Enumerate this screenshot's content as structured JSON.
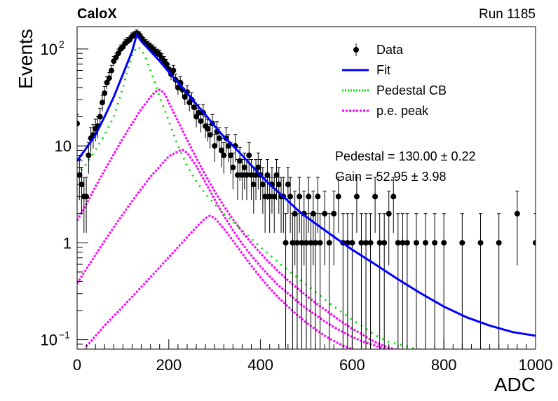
{
  "header": {
    "experiment": "CaloX",
    "run": "Run 1185"
  },
  "chart_data": {
    "type": "scatter",
    "title": "",
    "xlabel": "ADC",
    "ylabel": "Events",
    "xlim": [
      0,
      1000
    ],
    "ylim": [
      0.08,
      170
    ],
    "yscale": "log",
    "x_ticks": [
      0,
      200,
      400,
      600,
      800,
      1000
    ],
    "y_ticks": [
      {
        "value": 0.1,
        "label": "10",
        "exp": "−1"
      },
      {
        "value": 1,
        "label": "1",
        "exp": ""
      },
      {
        "value": 10,
        "label": "10",
        "exp": ""
      },
      {
        "value": 100,
        "label": "10",
        "exp": "2"
      }
    ],
    "grid": false,
    "legend_position": "top-right",
    "legend": [
      {
        "label": "Data",
        "style": "marker",
        "color": "#000000"
      },
      {
        "label": "Fit",
        "style": "solid",
        "color": "#0000ff"
      },
      {
        "label": "Pedestal CB",
        "style": "dotted",
        "color": "#00dd00"
      },
      {
        "label": "p.e. peak",
        "style": "dashed",
        "color": "#ff00ff"
      }
    ],
    "fit_results": {
      "pedestal": "Pedestal = 130.00 ± 0.22",
      "gain": "Gain = 52.95 ± 3.98"
    },
    "data": {
      "x": [
        0,
        5,
        10,
        15,
        20,
        25,
        30,
        35,
        40,
        45,
        50,
        55,
        60,
        65,
        70,
        75,
        80,
        85,
        90,
        95,
        100,
        105,
        110,
        115,
        120,
        125,
        130,
        135,
        140,
        145,
        150,
        155,
        160,
        165,
        170,
        175,
        180,
        185,
        190,
        195,
        200,
        205,
        210,
        215,
        220,
        225,
        230,
        235,
        240,
        245,
        250,
        255,
        260,
        265,
        270,
        275,
        280,
        285,
        290,
        295,
        300,
        305,
        310,
        315,
        320,
        325,
        330,
        335,
        340,
        345,
        350,
        355,
        360,
        365,
        370,
        375,
        380,
        385,
        390,
        395,
        400,
        405,
        410,
        415,
        420,
        425,
        430,
        435,
        440,
        445,
        450,
        455,
        460,
        465,
        470,
        475,
        480,
        485,
        490,
        495,
        500,
        505,
        510,
        515,
        520,
        525,
        530,
        540,
        550,
        560,
        570,
        580,
        590,
        600,
        610,
        620,
        630,
        640,
        650,
        660,
        670,
        680,
        690,
        700,
        710,
        720,
        740,
        760,
        780,
        800,
        840,
        880,
        920,
        960,
        1000
      ],
      "y": [
        17,
        5,
        4,
        3,
        3,
        8,
        12,
        13,
        15,
        16,
        20,
        28,
        35,
        45,
        50,
        60,
        75,
        82,
        90,
        100,
        105,
        115,
        120,
        125,
        135,
        140,
        145,
        140,
        130,
        120,
        115,
        110,
        105,
        100,
        95,
        90,
        88,
        80,
        75,
        70,
        62,
        55,
        60,
        48,
        40,
        45,
        38,
        32,
        36,
        28,
        30,
        25,
        20,
        22,
        18,
        22,
        16,
        15,
        13,
        17,
        10,
        14,
        12,
        9,
        8,
        12,
        10,
        8,
        6,
        10,
        5,
        7,
        5,
        6,
        5,
        8,
        5,
        4,
        5,
        6,
        5,
        4,
        3,
        5,
        3,
        4,
        3,
        5,
        4,
        3,
        3,
        1,
        4,
        3,
        1,
        2,
        1,
        3,
        1,
        2,
        1,
        3,
        1,
        2,
        1,
        3,
        1,
        2,
        1,
        2,
        3,
        1,
        1,
        1,
        3,
        1,
        1,
        1,
        3,
        1,
        1,
        2,
        3,
        1,
        1,
        1,
        1,
        1,
        1,
        1,
        1,
        1,
        1,
        2,
        1
      ]
    },
    "fit": {
      "x": [
        0,
        20,
        40,
        60,
        80,
        100,
        120,
        130,
        140,
        160,
        180,
        200,
        220,
        240,
        260,
        280,
        300,
        320,
        340,
        360,
        380,
        400,
        420,
        440,
        460,
        480,
        500,
        550,
        600,
        650,
        700,
        750,
        800,
        850,
        900,
        950,
        1000
      ],
      "y": [
        7,
        9.5,
        13,
        20,
        32,
        55,
        95,
        140,
        120,
        95,
        75,
        58,
        45,
        35,
        27,
        21,
        16,
        12.5,
        10,
        8,
        6.3,
        5,
        4,
        3.3,
        2.7,
        2.2,
        1.85,
        1.25,
        0.85,
        0.6,
        0.42,
        0.3,
        0.22,
        0.17,
        0.14,
        0.12,
        0.11
      ]
    },
    "pedestal_cb": {
      "x": [
        0,
        20,
        40,
        60,
        80,
        100,
        110,
        120,
        130,
        140,
        150,
        160,
        170,
        180,
        190,
        200,
        220,
        240,
        260,
        280,
        300,
        320,
        340,
        360,
        380,
        400,
        420,
        440,
        460,
        480,
        500,
        520,
        540,
        560,
        580,
        600,
        620,
        640,
        660,
        680,
        700,
        720,
        740,
        760
      ],
      "y": [
        5,
        6.5,
        9,
        13,
        20,
        40,
        60,
        85,
        105,
        100,
        80,
        60,
        45,
        32,
        24,
        18,
        10,
        6.2,
        4.3,
        3.2,
        2.5,
        2,
        1.65,
        1.35,
        1.1,
        0.9,
        0.75,
        0.62,
        0.52,
        0.44,
        0.37,
        0.31,
        0.26,
        0.22,
        0.19,
        0.16,
        0.14,
        0.12,
        0.105,
        0.095,
        0.09,
        0.085,
        0.08,
        0.078
      ]
    },
    "pe_peaks": [
      {
        "x": [
          0,
          20,
          40,
          60,
          80,
          100,
          120,
          140,
          160,
          170,
          180,
          190,
          200,
          220,
          240,
          260,
          280,
          300,
          320,
          340,
          360,
          380,
          400,
          420,
          440,
          460,
          480,
          500,
          520,
          540,
          560,
          580,
          600,
          620,
          640,
          660,
          680,
          700,
          720
        ],
        "y": [
          1.7,
          2.5,
          3.8,
          5.6,
          8.2,
          12,
          17,
          24,
          32,
          36,
          38,
          35,
          28,
          18,
          11.5,
          7.5,
          5,
          3.4,
          2.4,
          1.75,
          1.3,
          1,
          0.78,
          0.62,
          0.5,
          0.41,
          0.34,
          0.285,
          0.24,
          0.205,
          0.175,
          0.15,
          0.13,
          0.115,
          0.1,
          0.09,
          0.083,
          0.078,
          0.075
        ]
      },
      {
        "x": [
          0,
          40,
          80,
          120,
          160,
          200,
          220,
          230,
          240,
          260,
          280,
          300,
          320,
          340,
          360,
          380,
          400,
          420,
          440,
          460,
          480,
          500,
          520,
          540,
          560,
          580,
          600,
          620,
          640,
          660,
          680,
          700,
          720,
          740,
          760,
          780,
          800
        ],
        "y": [
          0.38,
          0.75,
          1.45,
          2.7,
          4.8,
          7.8,
          8.8,
          9.1,
          8.5,
          6.2,
          4.2,
          2.8,
          1.9,
          1.35,
          0.98,
          0.74,
          0.57,
          0.45,
          0.36,
          0.3,
          0.25,
          0.21,
          0.18,
          0.155,
          0.135,
          0.12,
          0.107,
          0.097,
          0.09,
          0.084,
          0.079,
          0.075,
          0.072,
          0.07,
          0.068,
          0.066,
          0.065
        ]
      },
      {
        "x": [
          20,
          60,
          100,
          140,
          180,
          220,
          260,
          280,
          290,
          300,
          320,
          340,
          360,
          380,
          400,
          420,
          440,
          460,
          480,
          500,
          520,
          540,
          560,
          580,
          600,
          620,
          640,
          660,
          680,
          700,
          720,
          740,
          760,
          780,
          800,
          820,
          840,
          860,
          880
        ],
        "y": [
          0.085,
          0.14,
          0.22,
          0.35,
          0.56,
          0.9,
          1.45,
          1.8,
          1.9,
          1.8,
          1.4,
          1.05,
          0.78,
          0.58,
          0.44,
          0.34,
          0.27,
          0.22,
          0.18,
          0.15,
          0.128,
          0.11,
          0.097,
          0.087,
          0.08,
          0.074,
          0.07,
          0.067,
          0.065,
          0.063,
          0.062,
          0.061,
          0.06,
          0.06,
          0.06,
          0.06,
          0.06,
          0.06,
          0.06
        ]
      }
    ]
  }
}
